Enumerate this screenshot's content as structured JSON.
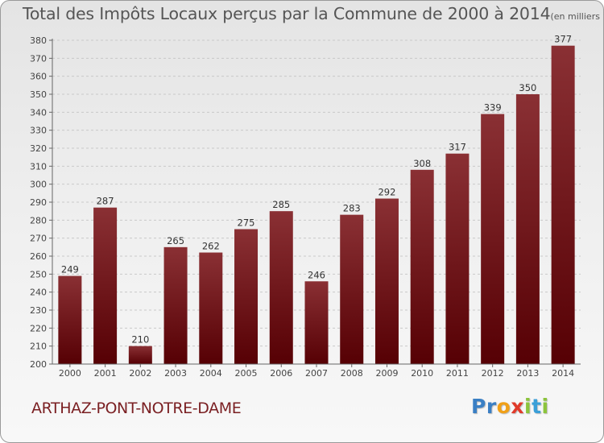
{
  "header": {
    "title": "Total des Impôts Locaux perçus par la Commune de 2000 à 2014",
    "unit": "(en milliers d'€)"
  },
  "commune": "ARTHAZ-PONT-NOTRE-DAME",
  "logo": {
    "letters": [
      {
        "char": "P",
        "color": "#3a7fc4"
      },
      {
        "char": "r",
        "color": "#3a7fc4"
      },
      {
        "char": "o",
        "color": "#f0a018"
      },
      {
        "char": "x",
        "color": "#e03a2a"
      },
      {
        "char": "i",
        "color": "#8cc43c"
      },
      {
        "char": "t",
        "color": "#3a9fd8"
      },
      {
        "char": "i",
        "color": "#8cc43c"
      }
    ]
  },
  "colors": {
    "bar_top": "#8a3034",
    "bar_bottom": "#560004",
    "grid": "#c9c9c9",
    "axis_text": "#444444"
  },
  "chart_data": {
    "type": "bar",
    "title": "Total des Impôts Locaux perçus par la Commune de 2000 à 2014",
    "xlabel": "",
    "ylabel": "",
    "categories": [
      "2000",
      "2001",
      "2002",
      "2003",
      "2004",
      "2005",
      "2006",
      "2007",
      "2008",
      "2009",
      "2010",
      "2011",
      "2012",
      "2013",
      "2014"
    ],
    "values": [
      249,
      287,
      210,
      265,
      262,
      275,
      285,
      246,
      283,
      292,
      308,
      317,
      339,
      350,
      377
    ],
    "ylim": [
      200,
      380
    ],
    "yticks": [
      200,
      210,
      220,
      230,
      240,
      250,
      260,
      270,
      280,
      290,
      300,
      310,
      320,
      330,
      340,
      350,
      360,
      370,
      380
    ],
    "grid": true
  }
}
